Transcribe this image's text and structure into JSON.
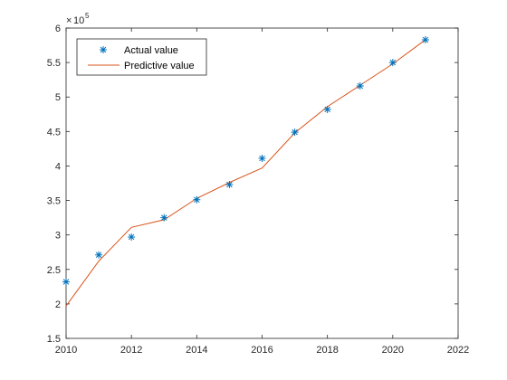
{
  "chart_data": {
    "type": "line",
    "title": "",
    "xlabel": "",
    "ylabel": "",
    "xlim": [
      2010,
      2022
    ],
    "ylim": [
      1.5,
      6
    ],
    "y_multiplier": {
      "base": "10",
      "exponent": "5",
      "times": "×"
    },
    "xticks": [
      "2010",
      "2012",
      "2014",
      "2016",
      "2018",
      "2020",
      "2022"
    ],
    "yticks": [
      "1.5",
      "2",
      "2.5",
      "3",
      "3.5",
      "4",
      "4.5",
      "5",
      "5.5",
      "6"
    ],
    "grid": false,
    "legend_position": "top-left",
    "series": [
      {
        "name": "Actual value",
        "kind": "scatter",
        "marker": "asterisk",
        "color": "#0072BD",
        "x": [
          2010,
          2011,
          2012,
          2013,
          2014,
          2015,
          2016,
          2017,
          2018,
          2019,
          2020,
          2021
        ],
        "y": [
          2.32,
          2.71,
          2.97,
          3.25,
          3.51,
          3.73,
          4.11,
          4.49,
          4.82,
          5.16,
          5.5,
          5.83
        ]
      },
      {
        "name": "Predictive value",
        "kind": "line",
        "color": "#D95319",
        "x": [
          2010,
          2011,
          2012,
          2013,
          2014,
          2015,
          2016,
          2017,
          2018,
          2019,
          2020,
          2021
        ],
        "y": [
          1.97,
          2.62,
          3.11,
          3.22,
          3.53,
          3.76,
          3.97,
          4.48,
          4.86,
          5.17,
          5.48,
          5.83
        ]
      }
    ]
  }
}
